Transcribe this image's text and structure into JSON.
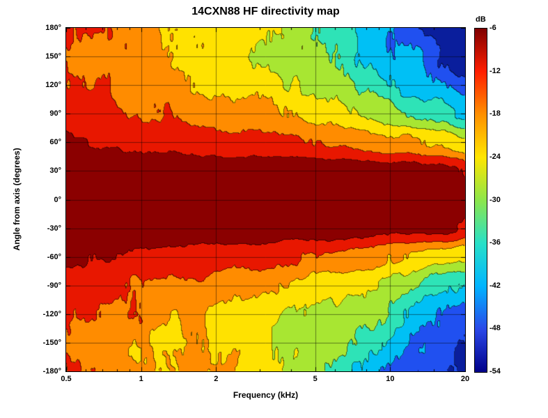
{
  "figure": {
    "background": "#FFFFFF"
  },
  "chart_data": {
    "type": "filled_contour",
    "title": "14CXN88 HF directivity map",
    "xlabel": "Frequency (kHz)",
    "ylabel": "Angle from axis (degrees)",
    "x_scale": "log",
    "x_range_khz": [
      0.5,
      20
    ],
    "y_range_deg": [
      -180,
      180
    ],
    "x_ticks": [
      {
        "value": 0.5,
        "label": "0.5"
      },
      {
        "value": 1,
        "label": "1"
      },
      {
        "value": 2,
        "label": "2"
      },
      {
        "value": 5,
        "label": "5"
      },
      {
        "value": 10,
        "label": "10"
      },
      {
        "value": 20,
        "label": "20"
      }
    ],
    "x_minor_ticks_khz": [
      0.6,
      0.7,
      0.8,
      0.9,
      3,
      4,
      6,
      7,
      8,
      9,
      15
    ],
    "y_ticks": [
      {
        "value": 180,
        "label": "180°"
      },
      {
        "value": 150,
        "label": "150°"
      },
      {
        "value": 120,
        "label": "120°"
      },
      {
        "value": 90,
        "label": "90°"
      },
      {
        "value": 60,
        "label": "60°"
      },
      {
        "value": 30,
        "label": "30°"
      },
      {
        "value": 0,
        "label": "0°"
      },
      {
        "value": -30,
        "label": "-30°"
      },
      {
        "value": -60,
        "label": "-60°"
      },
      {
        "value": -90,
        "label": "-90°"
      },
      {
        "value": -120,
        "label": "-120°"
      },
      {
        "value": -150,
        "label": "-150°"
      },
      {
        "value": -180,
        "label": "-180°"
      }
    ],
    "grid_x_khz": [
      1,
      2,
      5,
      10
    ],
    "grid_y_deg": [
      150,
      120,
      90,
      60,
      30,
      0,
      -30,
      -60,
      -90,
      -120,
      -150
    ],
    "contour_levels_db": [
      -54,
      -48,
      -42,
      -36,
      -30,
      -24,
      -18,
      -12,
      -6
    ],
    "band_colors_high_to_low": [
      "#8B0000",
      "#E81700",
      "#FF8C00",
      "#FFE200",
      "#A8E632",
      "#2EE3B7",
      "#00C0F5",
      "#2050F0",
      "#0A1E9C"
    ],
    "colorbar": {
      "label": "dB",
      "tick_labels": [
        "-6",
        "-12",
        "-18",
        "-24",
        "-30",
        "-36",
        "-42",
        "-48",
        "-54"
      ],
      "tick_values": [
        -6,
        -12,
        -18,
        -24,
        -30,
        -36,
        -42,
        -48,
        -54
      ],
      "gradient_top_to_bottom": [
        "#7F0000",
        "#FF1E00",
        "#FF9000",
        "#FFE600",
        "#8CE64B",
        "#28E0C8",
        "#00B4FF",
        "#2A48E8",
        "#000089"
      ]
    },
    "frequencies_khz": [
      0.5,
      0.7,
      1,
      1.4,
      2,
      2.8,
      4,
      5.6,
      8,
      11,
      16,
      20
    ],
    "angles_deg": [
      180,
      150,
      120,
      90,
      60,
      30,
      0,
      -30,
      -60,
      -90,
      -120,
      -150,
      -180
    ],
    "levels_db": [
      [
        -10,
        -14,
        -16,
        -18,
        -20,
        -22,
        -26,
        -30,
        -38,
        -44,
        -50,
        -52
      ],
      [
        -13,
        -18,
        -17,
        -19,
        -21,
        -23,
        -26,
        -29,
        -34,
        -40,
        -46,
        -50
      ],
      [
        -12,
        -13,
        -14,
        -16,
        -19,
        -21,
        -24,
        -27,
        -31,
        -36,
        -42,
        -46
      ],
      [
        -9,
        -11,
        -12,
        -13,
        -15,
        -16,
        -19,
        -21,
        -25,
        -29,
        -34,
        -38
      ],
      [
        -5,
        -7,
        -8,
        -8,
        -9,
        -10,
        -11,
        -13,
        -15,
        -17,
        -20,
        -22
      ],
      [
        -2,
        -2,
        -2,
        -2,
        -2,
        -2,
        -2,
        -2,
        -3,
        -4,
        -5,
        -6
      ],
      [
        -1,
        -1,
        -1,
        -1,
        -1,
        -1,
        -1,
        -1,
        -1,
        -2,
        -2,
        -3
      ],
      [
        -2,
        -2,
        -2,
        -2,
        -2,
        -2,
        -2,
        -2,
        -3,
        -4,
        -5,
        -6
      ],
      [
        -5,
        -6,
        -7,
        -8,
        -9,
        -10,
        -11,
        -12,
        -15,
        -18,
        -21,
        -23
      ],
      [
        -9,
        -10,
        -12,
        -13,
        -14,
        -16,
        -18,
        -21,
        -24,
        -28,
        -33,
        -37
      ],
      [
        -12,
        -14,
        -14,
        -16,
        -18,
        -20,
        -23,
        -26,
        -30,
        -35,
        -41,
        -45
      ],
      [
        -14,
        -17,
        -18,
        -19,
        -20,
        -22,
        -25,
        -28,
        -33,
        -39,
        -45,
        -49
      ],
      [
        -11,
        -15,
        -16,
        -17,
        -19,
        -21,
        -25,
        -29,
        -37,
        -43,
        -49,
        -51
      ]
    ]
  }
}
